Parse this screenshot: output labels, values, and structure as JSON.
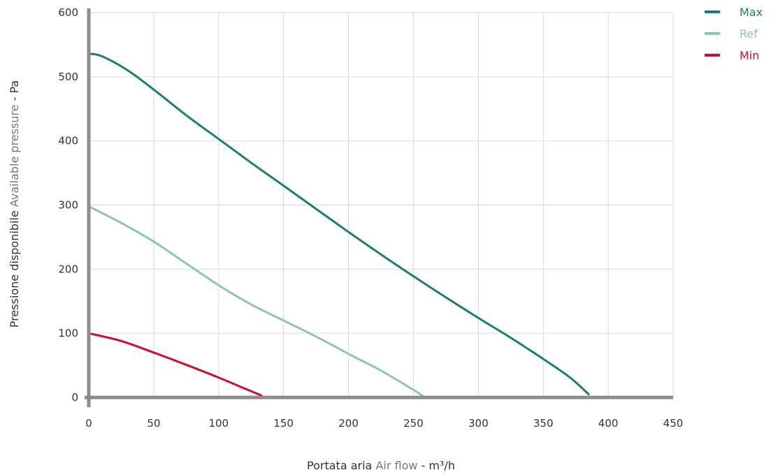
{
  "chart_data": {
    "type": "line",
    "x_axis": {
      "label_main": "Portata aria",
      "label_light": "Air flow",
      "label_unit": "- m³/h",
      "range": [
        0,
        450
      ],
      "ticks": [
        "0",
        "50",
        "100",
        "150",
        "200",
        "250",
        "300",
        "350",
        "400",
        "450"
      ]
    },
    "y_axis": {
      "label_main": "Pressione disponibile",
      "label_light": "Available pressure",
      "label_unit": "- Pa",
      "range": [
        0,
        600
      ],
      "ticks": [
        "0",
        "100",
        "200",
        "300",
        "400",
        "500",
        "600"
      ]
    },
    "grid": true,
    "legend_position": "top-right",
    "series": [
      {
        "name": "Max",
        "color": "#1a7f6b",
        "points": [
          [
            0,
            536
          ],
          [
            10,
            532
          ],
          [
            30,
            510
          ],
          [
            50,
            480
          ],
          [
            75,
            440
          ],
          [
            100,
            403
          ],
          [
            125,
            366
          ],
          [
            150,
            330
          ],
          [
            175,
            294
          ],
          [
            200,
            258
          ],
          [
            225,
            223
          ],
          [
            250,
            189
          ],
          [
            275,
            156
          ],
          [
            300,
            124
          ],
          [
            325,
            93
          ],
          [
            350,
            60
          ],
          [
            370,
            32
          ],
          [
            385,
            5
          ]
        ]
      },
      {
        "name": "Ref",
        "color": "#8cc5b5",
        "points": [
          [
            0,
            298
          ],
          [
            25,
            272
          ],
          [
            50,
            243
          ],
          [
            75,
            209
          ],
          [
            100,
            175
          ],
          [
            125,
            145
          ],
          [
            150,
            120
          ],
          [
            175,
            95
          ],
          [
            200,
            68
          ],
          [
            225,
            42
          ],
          [
            245,
            18
          ],
          [
            257,
            3
          ]
        ]
      },
      {
        "name": "Min",
        "color": "#c8102e",
        "points": [
          [
            0,
            100
          ],
          [
            25,
            88
          ],
          [
            50,
            70
          ],
          [
            75,
            51
          ],
          [
            100,
            31
          ],
          [
            120,
            14
          ],
          [
            133,
            3
          ]
        ]
      }
    ]
  }
}
